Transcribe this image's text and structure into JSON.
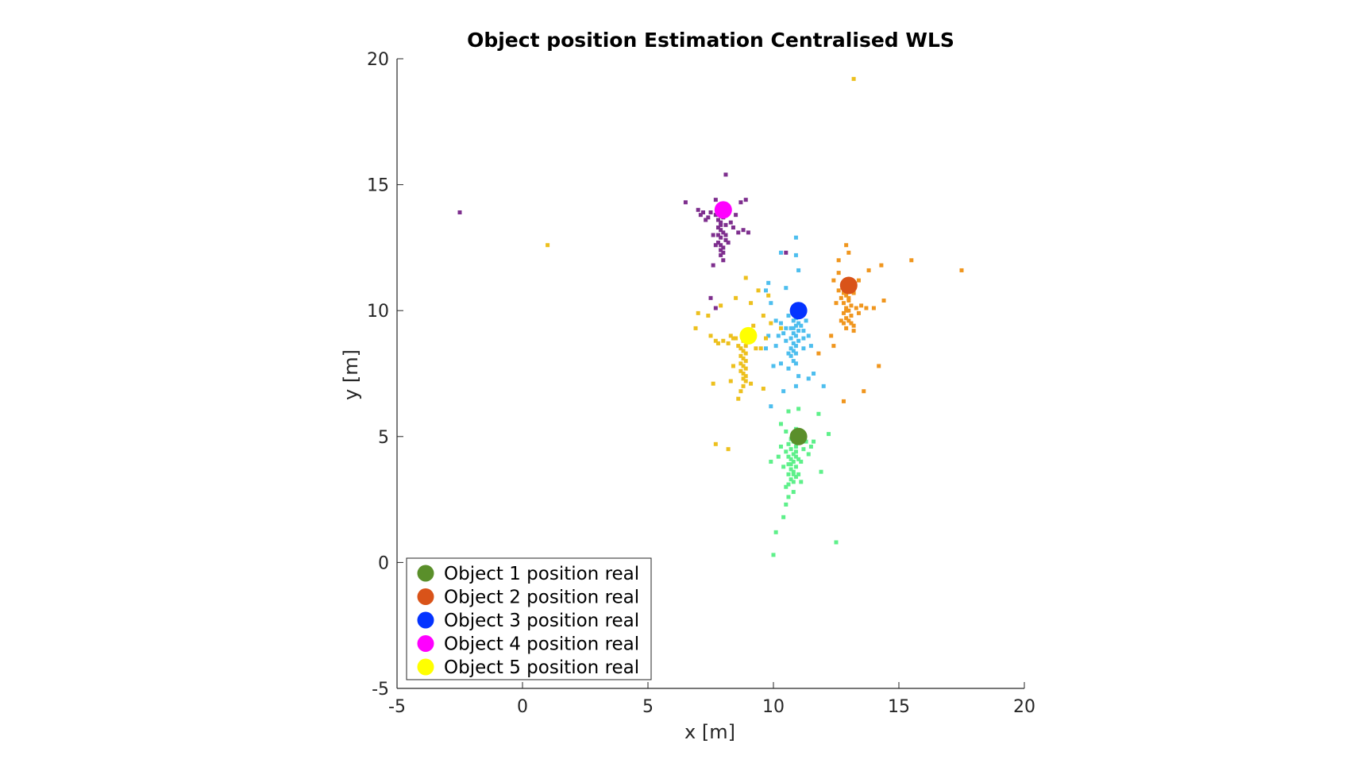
{
  "chart_data": {
    "type": "scatter",
    "title": "Object position Estimation Centralised WLS",
    "xlabel": "x [m]",
    "ylabel": "y [m]",
    "xlim": [
      -5,
      20
    ],
    "ylim": [
      -5,
      20
    ],
    "xticks": [
      -5,
      0,
      5,
      10,
      15,
      20
    ],
    "yticks": [
      -5,
      0,
      5,
      10,
      15,
      20
    ],
    "xtick_labels": [
      "-5",
      "0",
      "5",
      "10",
      "15",
      "20"
    ],
    "ytick_labels": [
      "-5",
      "0",
      "5",
      "10",
      "15",
      "20"
    ],
    "grid": false,
    "legend_position": "bottom-left",
    "legend": [
      {
        "label": "Object 1 position real",
        "color": "#5a8f2a"
      },
      {
        "label": "Object 2 position real",
        "color": "#d95319"
      },
      {
        "label": "Object 3 position real",
        "color": "#0433ff"
      },
      {
        "label": "Object 4 position real",
        "color": "#ff00ff"
      },
      {
        "label": "Object 5 position real",
        "color": "#ffff00"
      }
    ],
    "real_positions": [
      {
        "x": 11,
        "y": 5,
        "color": "#5a8f2a"
      },
      {
        "x": 13,
        "y": 11,
        "color": "#d95319"
      },
      {
        "x": 11,
        "y": 10,
        "color": "#0433ff"
      },
      {
        "x": 8,
        "y": 14,
        "color": "#ff00ff"
      },
      {
        "x": 9,
        "y": 9,
        "color": "#ffff00"
      }
    ],
    "estimates": [
      {
        "color": "#5ef08a",
        "points": [
          [
            10.8,
            4.8
          ],
          [
            10.9,
            4.6
          ],
          [
            10.7,
            4.5
          ],
          [
            10.8,
            4.3
          ],
          [
            10.9,
            4.2
          ],
          [
            10.7,
            4.1
          ],
          [
            10.8,
            4.0
          ],
          [
            10.6,
            3.9
          ],
          [
            10.9,
            3.8
          ],
          [
            10.7,
            3.7
          ],
          [
            10.8,
            3.6
          ],
          [
            10.6,
            3.5
          ],
          [
            10.9,
            3.4
          ],
          [
            10.7,
            3.3
          ],
          [
            10.8,
            3.2
          ],
          [
            10.6,
            3.1
          ],
          [
            10.5,
            3.0
          ],
          [
            11.0,
            3.5
          ],
          [
            11.1,
            4.0
          ],
          [
            10.5,
            4.4
          ],
          [
            11.2,
            4.5
          ],
          [
            10.4,
            3.8
          ],
          [
            11.0,
            4.9
          ],
          [
            10.6,
            4.7
          ],
          [
            10.9,
            4.4
          ],
          [
            10.7,
            3.9
          ],
          [
            10.8,
            3.5
          ],
          [
            11.0,
            4.1
          ],
          [
            10.6,
            4.2
          ],
          [
            11.3,
            4.8
          ],
          [
            11.5,
            4.6
          ],
          [
            10.3,
            4.6
          ],
          [
            10.2,
            4.2
          ],
          [
            9.9,
            4.0
          ],
          [
            11.4,
            4.3
          ],
          [
            11.6,
            4.8
          ],
          [
            12.2,
            5.1
          ],
          [
            11.8,
            5.9
          ],
          [
            11.0,
            6.1
          ],
          [
            10.6,
            2.6
          ],
          [
            10.5,
            2.3
          ],
          [
            10.4,
            1.8
          ],
          [
            10.1,
            1.2
          ],
          [
            10.0,
            0.3
          ],
          [
            12.5,
            0.8
          ],
          [
            11.9,
            3.6
          ],
          [
            10.5,
            5.2
          ],
          [
            10.8,
            2.8
          ],
          [
            11.1,
            3.2
          ],
          [
            10.7,
            4.9
          ],
          [
            10.9,
            5.3
          ],
          [
            10.6,
            6.0
          ],
          [
            10.3,
            5.5
          ]
        ]
      },
      {
        "color": "#f0961e",
        "points": [
          [
            12.9,
            10.6
          ],
          [
            13.0,
            10.4
          ],
          [
            12.8,
            10.3
          ],
          [
            13.1,
            10.2
          ],
          [
            12.9,
            10.1
          ],
          [
            13.0,
            10.0
          ],
          [
            12.8,
            9.9
          ],
          [
            13.1,
            9.8
          ],
          [
            12.9,
            9.7
          ],
          [
            13.0,
            9.6
          ],
          [
            12.8,
            9.5
          ],
          [
            13.2,
            9.4
          ],
          [
            12.9,
            9.3
          ],
          [
            13.1,
            9.5
          ],
          [
            12.7,
            10.5
          ],
          [
            13.2,
            10.7
          ],
          [
            12.6,
            10.8
          ],
          [
            13.3,
            10.1
          ],
          [
            12.7,
            9.6
          ],
          [
            13.0,
            10.9
          ],
          [
            12.5,
            10.3
          ],
          [
            13.4,
            9.9
          ],
          [
            13.5,
            10.2
          ],
          [
            13.7,
            10.1
          ],
          [
            14.0,
            10.1
          ],
          [
            14.4,
            10.4
          ],
          [
            13.4,
            11.2
          ],
          [
            13.8,
            11.6
          ],
          [
            14.3,
            11.8
          ],
          [
            15.5,
            12.0
          ],
          [
            17.5,
            11.6
          ],
          [
            12.9,
            12.6
          ],
          [
            12.6,
            12.0
          ],
          [
            13.0,
            12.3
          ],
          [
            12.4,
            11.2
          ],
          [
            12.6,
            11.5
          ],
          [
            14.2,
            7.8
          ],
          [
            13.6,
            6.8
          ],
          [
            12.8,
            6.4
          ],
          [
            11.8,
            8.3
          ],
          [
            12.3,
            9.0
          ],
          [
            12.4,
            8.6
          ],
          [
            13.2,
            9.2
          ],
          [
            12.9,
            10.0
          ],
          [
            13.0,
            10.5
          ],
          [
            12.8,
            10.7
          ]
        ]
      },
      {
        "color": "#4dbeee",
        "points": [
          [
            10.9,
            9.7
          ],
          [
            10.8,
            9.6
          ],
          [
            11.0,
            9.5
          ],
          [
            10.9,
            9.4
          ],
          [
            10.7,
            9.3
          ],
          [
            11.0,
            9.2
          ],
          [
            10.8,
            9.1
          ],
          [
            10.9,
            9.0
          ],
          [
            10.7,
            8.9
          ],
          [
            11.0,
            8.8
          ],
          [
            10.8,
            8.7
          ],
          [
            10.9,
            8.6
          ],
          [
            10.7,
            8.5
          ],
          [
            10.8,
            8.4
          ],
          [
            10.9,
            8.3
          ],
          [
            10.7,
            8.2
          ],
          [
            10.8,
            8.0
          ],
          [
            11.1,
            9.4
          ],
          [
            11.2,
            9.2
          ],
          [
            10.5,
            9.3
          ],
          [
            10.4,
            9.1
          ],
          [
            11.3,
            9.6
          ],
          [
            10.6,
            9.8
          ],
          [
            11.2,
            8.9
          ],
          [
            10.5,
            8.8
          ],
          [
            11.4,
            9.0
          ],
          [
            10.3,
            9.5
          ],
          [
            10.2,
            9.0
          ],
          [
            11.5,
            8.6
          ],
          [
            10.6,
            8.3
          ],
          [
            10.9,
            7.9
          ],
          [
            10.6,
            7.7
          ],
          [
            11.0,
            7.4
          ],
          [
            10.3,
            7.9
          ],
          [
            10.1,
            8.6
          ],
          [
            9.8,
            9.0
          ],
          [
            10.1,
            9.6
          ],
          [
            9.9,
            10.3
          ],
          [
            9.7,
            10.8
          ],
          [
            10.5,
            10.9
          ],
          [
            11.0,
            11.6
          ],
          [
            10.9,
            12.2
          ],
          [
            10.9,
            12.9
          ],
          [
            10.3,
            12.3
          ],
          [
            9.8,
            11.1
          ],
          [
            9.7,
            8.5
          ],
          [
            10.0,
            7.8
          ],
          [
            12.0,
            7.0
          ],
          [
            11.4,
            7.3
          ],
          [
            10.9,
            7.0
          ],
          [
            9.9,
            6.2
          ],
          [
            10.4,
            6.8
          ],
          [
            11.6,
            7.5
          ],
          [
            11.2,
            8.5
          ],
          [
            10.8,
            9.3
          ]
        ]
      },
      {
        "color": "#7e2f8e",
        "points": [
          [
            7.9,
            13.9
          ],
          [
            8.0,
            13.7
          ],
          [
            7.8,
            13.6
          ],
          [
            7.9,
            13.5
          ],
          [
            8.1,
            13.4
          ],
          [
            7.8,
            13.3
          ],
          [
            7.9,
            13.2
          ],
          [
            8.0,
            13.1
          ],
          [
            7.8,
            13.0
          ],
          [
            7.9,
            12.9
          ],
          [
            8.1,
            12.8
          ],
          [
            7.8,
            12.7
          ],
          [
            7.9,
            12.6
          ],
          [
            8.0,
            12.5
          ],
          [
            7.9,
            12.4
          ],
          [
            8.0,
            12.3
          ],
          [
            7.9,
            12.2
          ],
          [
            8.0,
            12.0
          ],
          [
            7.7,
            13.8
          ],
          [
            7.5,
            13.9
          ],
          [
            7.4,
            13.7
          ],
          [
            7.3,
            13.6
          ],
          [
            7.2,
            13.9
          ],
          [
            7.1,
            13.8
          ],
          [
            7.0,
            14.0
          ],
          [
            8.3,
            13.5
          ],
          [
            8.4,
            13.3
          ],
          [
            8.6,
            13.1
          ],
          [
            8.8,
            13.2
          ],
          [
            9.0,
            13.1
          ],
          [
            8.5,
            13.8
          ],
          [
            8.7,
            14.3
          ],
          [
            8.9,
            14.4
          ],
          [
            8.1,
            15.4
          ],
          [
            7.7,
            14.4
          ],
          [
            6.5,
            14.3
          ],
          [
            7.6,
            13.0
          ],
          [
            7.7,
            12.6
          ],
          [
            8.2,
            12.7
          ],
          [
            8.2,
            13.9
          ],
          [
            8.0,
            14.2
          ],
          [
            7.6,
            11.8
          ],
          [
            7.5,
            10.5
          ],
          [
            7.7,
            10.1
          ],
          [
            10.5,
            12.3
          ],
          [
            -2.5,
            13.9
          ],
          [
            7.9,
            13.4
          ],
          [
            8.1,
            13.0
          ]
        ]
      },
      {
        "color": "#edc01e",
        "points": [
          [
            8.8,
            8.8
          ],
          [
            8.9,
            8.6
          ],
          [
            8.7,
            8.5
          ],
          [
            8.8,
            8.4
          ],
          [
            8.9,
            8.3
          ],
          [
            8.7,
            8.2
          ],
          [
            8.8,
            8.1
          ],
          [
            8.9,
            8.0
          ],
          [
            8.7,
            7.9
          ],
          [
            8.8,
            7.8
          ],
          [
            8.9,
            7.7
          ],
          [
            8.7,
            7.6
          ],
          [
            8.8,
            7.5
          ],
          [
            8.9,
            7.4
          ],
          [
            8.8,
            7.3
          ],
          [
            8.9,
            7.2
          ],
          [
            8.8,
            7.0
          ],
          [
            8.7,
            6.8
          ],
          [
            8.6,
            6.5
          ],
          [
            8.5,
            8.9
          ],
          [
            8.3,
            9.0
          ],
          [
            8.2,
            8.7
          ],
          [
            8.0,
            8.8
          ],
          [
            7.8,
            8.7
          ],
          [
            7.7,
            8.8
          ],
          [
            7.5,
            9.0
          ],
          [
            6.9,
            9.3
          ],
          [
            7.4,
            9.8
          ],
          [
            7.0,
            9.9
          ],
          [
            7.9,
            10.2
          ],
          [
            8.5,
            10.5
          ],
          [
            9.1,
            10.3
          ],
          [
            9.4,
            10.8
          ],
          [
            9.8,
            10.6
          ],
          [
            8.9,
            11.3
          ],
          [
            9.3,
            8.5
          ],
          [
            9.5,
            8.5
          ],
          [
            9.2,
            9.4
          ],
          [
            9.6,
            9.8
          ],
          [
            9.9,
            9.5
          ],
          [
            10.3,
            9.3
          ],
          [
            8.4,
            7.8
          ],
          [
            8.3,
            7.2
          ],
          [
            7.6,
            7.1
          ],
          [
            9.1,
            7.1
          ],
          [
            9.6,
            6.9
          ],
          [
            7.7,
            4.7
          ],
          [
            8.2,
            4.5
          ],
          [
            1.0,
            12.6
          ],
          [
            13.2,
            19.2
          ],
          [
            9.7,
            8.9
          ],
          [
            8.6,
            8.6
          ],
          [
            8.9,
            9.1
          ],
          [
            8.4,
            8.9
          ]
        ]
      }
    ]
  }
}
